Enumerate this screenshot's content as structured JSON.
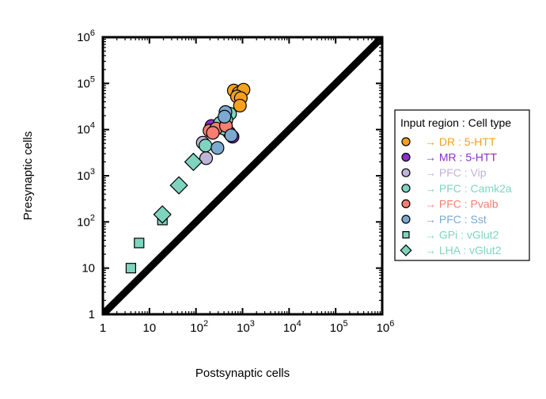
{
  "chart_data": {
    "type": "scatter",
    "xlabel": "Postsynaptic cells",
    "ylabel": "Presynaptic cells",
    "xscale": "log",
    "yscale": "log",
    "xlim": [
      1,
      1000000
    ],
    "ylim": [
      1,
      1000000
    ],
    "x_tick_labels": [
      {
        "value": 1,
        "base": "1",
        "exp": ""
      },
      {
        "value": 10,
        "base": "10",
        "exp": ""
      },
      {
        "value": 100,
        "base": "10",
        "exp": "2"
      },
      {
        "value": 1000,
        "base": "10",
        "exp": "3"
      },
      {
        "value": 10000,
        "base": "10",
        "exp": "4"
      },
      {
        "value": 100000,
        "base": "10",
        "exp": "5"
      },
      {
        "value": 1000000,
        "base": "10",
        "exp": "6"
      }
    ],
    "y_tick_labels": [
      {
        "value": 1,
        "base": "1",
        "exp": ""
      },
      {
        "value": 10,
        "base": "10",
        "exp": ""
      },
      {
        "value": 100,
        "base": "10",
        "exp": "2"
      },
      {
        "value": 1000,
        "base": "10",
        "exp": "3"
      },
      {
        "value": 10000,
        "base": "10",
        "exp": "4"
      },
      {
        "value": 100000,
        "base": "10",
        "exp": "5"
      },
      {
        "value": 1000000,
        "base": "10",
        "exp": "6"
      }
    ],
    "reference_line": {
      "label": "unity",
      "from": [
        1,
        1
      ],
      "to": [
        1000000,
        1000000
      ]
    },
    "legend": {
      "title": "Input region : Cell type",
      "placement": "right"
    },
    "series": [
      {
        "name": "→ DR : 5-HTT",
        "marker": "circle",
        "color": "#f5a11e",
        "text_color": "#f5a11e",
        "points": [
          [
            650,
            70000
          ],
          [
            820,
            62000
          ],
          [
            1050,
            73000
          ],
          [
            760,
            52000
          ],
          [
            920,
            48000
          ],
          [
            880,
            33000
          ]
        ]
      },
      {
        "name": "→ MR : 5-HTT",
        "marker": "circle",
        "color": "#8a2fc9",
        "text_color": "#8a2fc9",
        "points": [
          [
            215,
            12000
          ],
          [
            520,
            8500
          ],
          [
            610,
            7000
          ]
        ]
      },
      {
        "name": "→ PFC : Vip",
        "marker": "circle",
        "color": "#c0b3d8",
        "text_color": "#c0b3d8",
        "points": [
          [
            140,
            5200
          ],
          [
            165,
            2400
          ],
          [
            350,
            11000
          ]
        ]
      },
      {
        "name": "→ PFC : Camk2a",
        "marker": "circle",
        "color": "#7fd4bf",
        "text_color": "#7fd4bf",
        "points": [
          [
            160,
            4500
          ],
          [
            330,
            14000
          ],
          [
            400,
            10500
          ],
          [
            540,
            22000
          ],
          [
            450,
            16000
          ]
        ]
      },
      {
        "name": "→ PFC : Pvalb",
        "marker": "circle",
        "color": "#f47f72",
        "text_color": "#f47f72",
        "points": [
          [
            195,
            9500
          ],
          [
            270,
            10500
          ],
          [
            440,
            12000
          ],
          [
            230,
            8500
          ]
        ]
      },
      {
        "name": "→ PFC : Sst",
        "marker": "circle",
        "color": "#7ba9d0",
        "text_color": "#7ba9d0",
        "points": [
          [
            290,
            4000
          ],
          [
            430,
            24000
          ],
          [
            570,
            7500
          ],
          [
            410,
            19000
          ]
        ]
      },
      {
        "name": "→ GPi : vGlut2",
        "marker": "square",
        "color": "#7fd4bf",
        "text_color": "#7fd4bf",
        "points": [
          [
            4,
            10
          ],
          [
            6,
            35
          ],
          [
            19,
            110
          ]
        ]
      },
      {
        "name": "→ LHA : vGlut2",
        "marker": "diamond",
        "color": "#7fd4bf",
        "text_color": "#7fd4bf",
        "points": [
          [
            19,
            145
          ],
          [
            43,
            620
          ],
          [
            88,
            2000
          ]
        ]
      }
    ]
  }
}
